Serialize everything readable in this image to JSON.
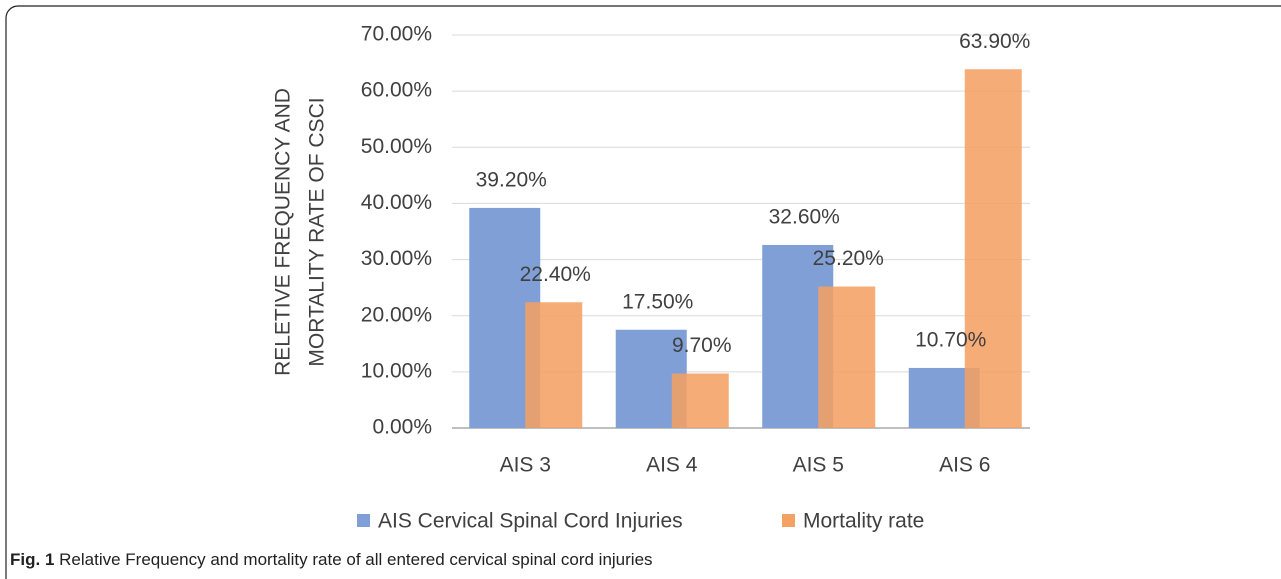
{
  "chart_data": {
    "type": "bar",
    "y_label": [
      "RELETIVE FREQUENCY  AND",
      "MORTALITY RATE OF CSCI"
    ],
    "categories": [
      "AIS 3",
      "AIS 4",
      "AIS 5",
      "AIS 6"
    ],
    "series": [
      {
        "name": "AIS Cervical Spinal Cord Injuries",
        "color": "#7f9fd6",
        "values": [
          39.2,
          17.5,
          32.6,
          10.7
        ],
        "value_labels": [
          "39.20%",
          "17.50%",
          "32.60%",
          "10.70%"
        ]
      },
      {
        "name": "Mortality rate",
        "color": "#f4a164",
        "values": [
          22.4,
          9.7,
          25.2,
          63.9
        ],
        "value_labels": [
          "22.40%",
          "9.70%",
          "25.20%",
          "63.90%"
        ]
      }
    ],
    "ylim": [
      0,
      70
    ],
    "yticks": [
      {
        "value": 0,
        "label": "0.00%"
      },
      {
        "value": 10,
        "label": "10.00%"
      },
      {
        "value": 20,
        "label": "20.00%"
      },
      {
        "value": 30,
        "label": "30.00%"
      },
      {
        "value": 40,
        "label": "40.00%"
      },
      {
        "value": 50,
        "label": "50.00%"
      },
      {
        "value": 60,
        "label": "60.00%"
      },
      {
        "value": 70,
        "label": "70.00%"
      }
    ],
    "grid": true,
    "legend": "bottom",
    "caption": {
      "label": "Fig. 1",
      "text": "Relative Frequency and mortality rate of all entered cervical spinal cord injuries"
    }
  }
}
